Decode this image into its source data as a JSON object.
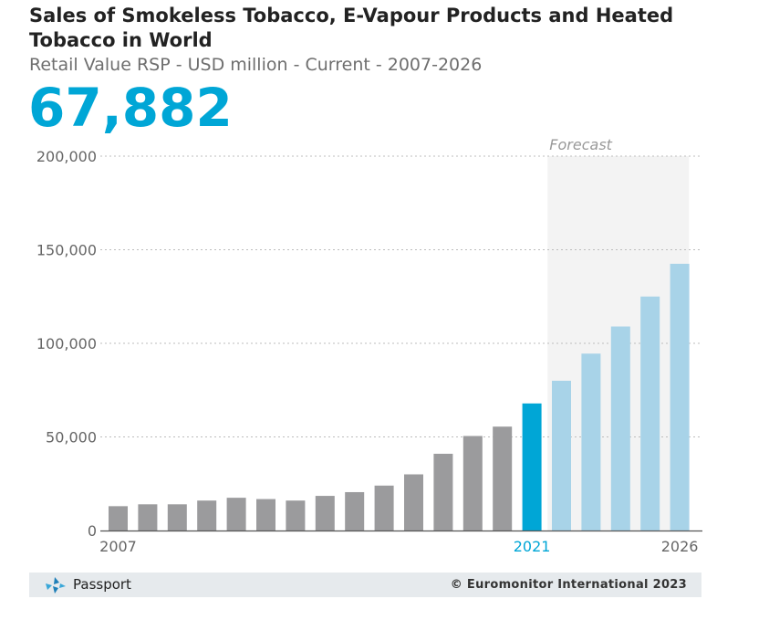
{
  "header": {
    "title": "Sales of Smokeless Tobacco, E-Vapour Products and Heated Tobacco in World",
    "subtitle": "Retail Value RSP - USD million - Current - 2007-2026",
    "headline_value": "67,882"
  },
  "footer": {
    "brand": "Passport",
    "copyright": "© Euromonitor International 2023"
  },
  "colors": {
    "historic": "#9b9b9d",
    "current": "#00a6d6",
    "forecast": "#a8d3e8",
    "forecast_band": "#f3f3f3",
    "headline": "#00a6d6"
  },
  "chart_data": {
    "type": "bar",
    "title": "",
    "xlabel": "",
    "ylabel": "",
    "ylim": [
      0,
      200000
    ],
    "y_ticks": [
      0,
      50000,
      100000,
      150000,
      200000
    ],
    "y_tick_labels": [
      "0",
      "50,000",
      "100,000",
      "150,000",
      "200,000"
    ],
    "grid": true,
    "forecast_label": "Forecast",
    "forecast_start": "2022",
    "highlight": "2021",
    "x_tick_labels": [
      "2007",
      "2021",
      "2026"
    ],
    "categories": [
      "2007",
      "2008",
      "2009",
      "2010",
      "2011",
      "2012",
      "2013",
      "2014",
      "2015",
      "2016",
      "2017",
      "2018",
      "2019",
      "2020",
      "2021",
      "2022",
      "2023",
      "2024",
      "2025",
      "2026"
    ],
    "values": [
      13000,
      14000,
      14000,
      16000,
      17500,
      16800,
      16000,
      18500,
      20500,
      24000,
      30000,
      41000,
      50500,
      55500,
      67882,
      80000,
      94500,
      109000,
      125000,
      142500
    ]
  }
}
